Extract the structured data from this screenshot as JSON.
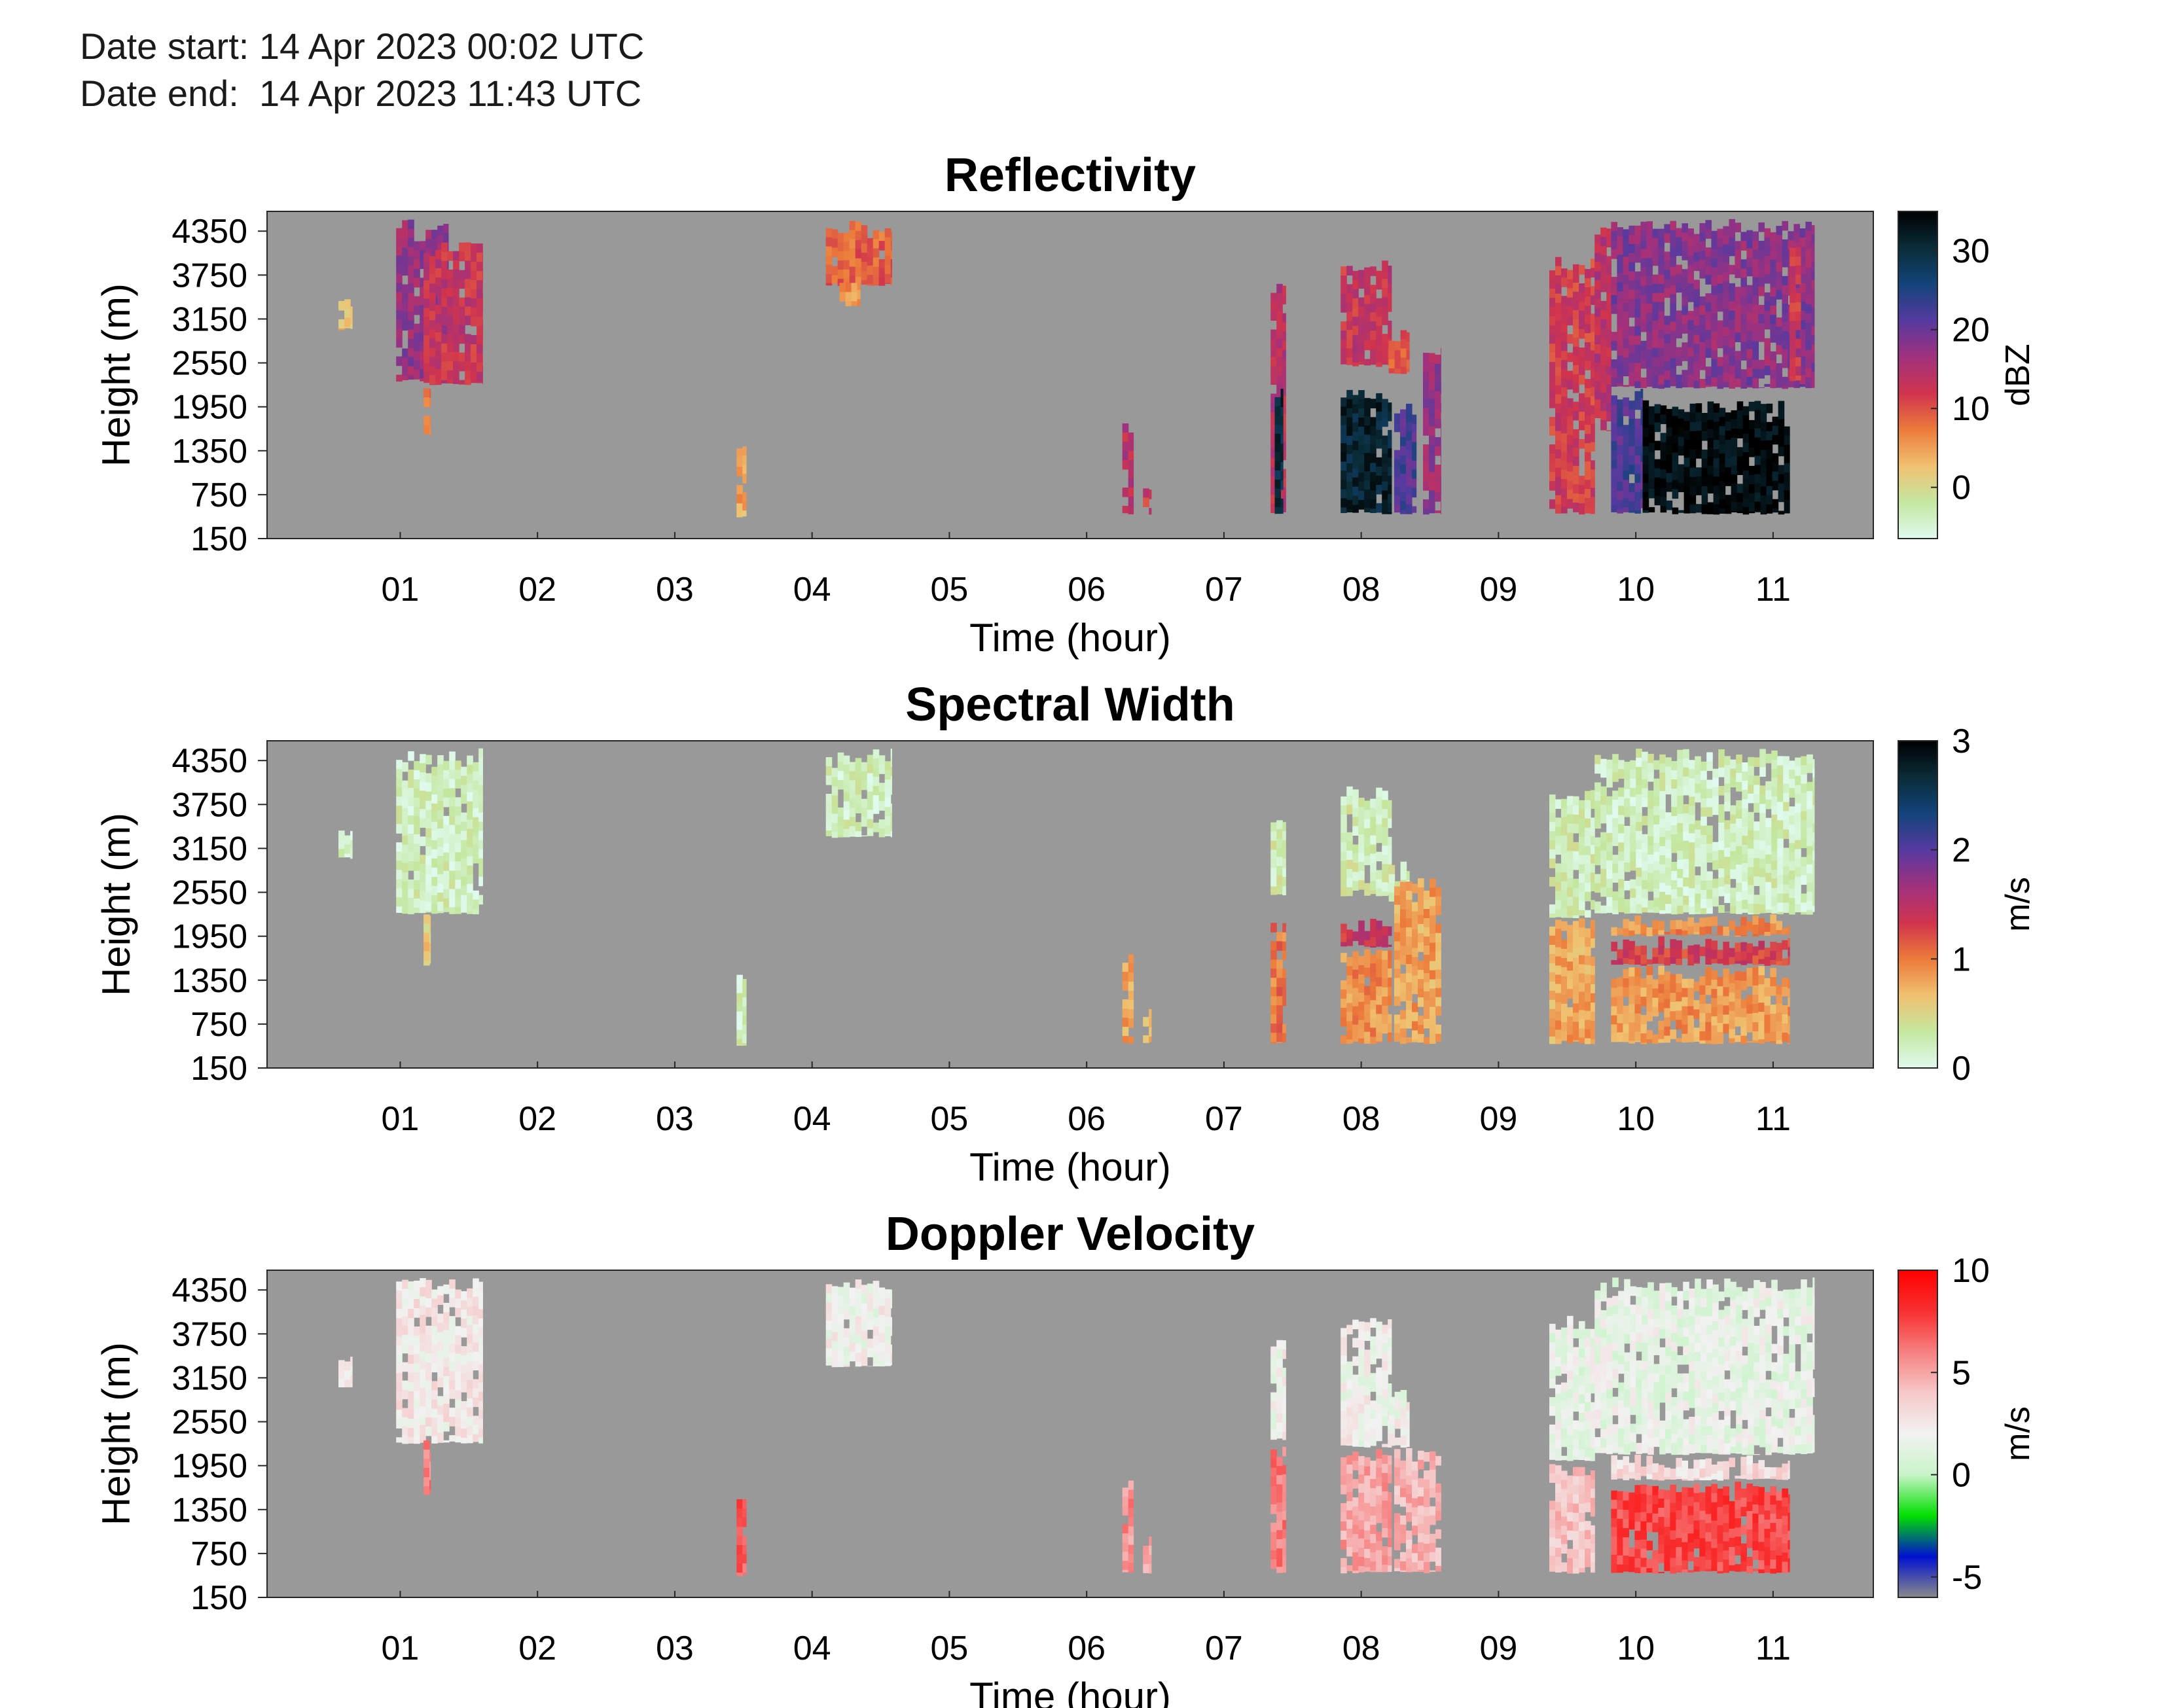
{
  "header": {
    "date_start": "Date start: 14 Apr 2023 00:02 UTC",
    "date_end": "Date end:  14 Apr 2023 11:43 UTC"
  },
  "chart_data": [
    {
      "type": "heatmap",
      "title": "Reflectivity",
      "xlabel": "Time (hour)",
      "ylabel": "Height (m)",
      "xlim": [
        0.03,
        11.73
      ],
      "ylim": [
        150,
        4620
      ],
      "xticks": [
        "01",
        "02",
        "03",
        "04",
        "05",
        "06",
        "07",
        "08",
        "09",
        "10",
        "11"
      ],
      "yticks": [
        "4350",
        "3750",
        "3150",
        "2550",
        "1950",
        "1350",
        "750",
        "150"
      ],
      "background_color": "#999999",
      "colorbar": {
        "label": "dBZ",
        "min": -6.5,
        "max": 35,
        "ticks": [
          "30",
          "20",
          "10",
          "0"
        ],
        "colors": [
          "#dffbee",
          "#c4e7a0",
          "#f0c170",
          "#ec7a3a",
          "#d0344e",
          "#a0317e",
          "#553aa0",
          "#13447a",
          "#0a2c38",
          "#000000"
        ]
      },
      "regions": [
        {
          "t": [
            0.55,
            0.65
          ],
          "h": [
            3000,
            3450
          ],
          "v": 3
        },
        {
          "t": [
            0.97,
            1.35
          ],
          "h": [
            2300,
            4520
          ],
          "v": 17
        },
        {
          "t": [
            1.17,
            1.6
          ],
          "h": [
            2250,
            4200
          ],
          "v": 13
        },
        {
          "t": [
            1.17,
            1.22
          ],
          "h": [
            1550,
            2300
          ],
          "v": 8
        },
        {
          "t": [
            3.45,
            3.52
          ],
          "h": [
            430,
            1550
          ],
          "v": 4
        },
        {
          "t": [
            4.1,
            4.58
          ],
          "h": [
            3600,
            4520
          ],
          "v": 9
        },
        {
          "t": [
            4.2,
            4.35
          ],
          "h": [
            3300,
            3700
          ],
          "v": 6
        },
        {
          "t": [
            6.26,
            6.34
          ],
          "h": [
            480,
            1750
          ],
          "v": 14
        },
        {
          "t": [
            6.41,
            6.47
          ],
          "h": [
            480,
            1000
          ],
          "v": 12
        },
        {
          "t": [
            7.34,
            7.45
          ],
          "h": [
            480,
            3700
          ],
          "v": 14
        },
        {
          "t": [
            7.37,
            7.43
          ],
          "h": [
            480,
            2200
          ],
          "v": 30
        },
        {
          "t": [
            7.85,
            8.22
          ],
          "h": [
            2500,
            4000
          ],
          "v": 13
        },
        {
          "t": [
            7.85,
            8.22
          ],
          "h": [
            480,
            2200
          ],
          "v": 31
        },
        {
          "t": [
            8.2,
            8.35
          ],
          "h": [
            2400,
            3000
          ],
          "v": 9
        },
        {
          "t": [
            8.24,
            8.4
          ],
          "h": [
            480,
            2000
          ],
          "v": 22
        },
        {
          "t": [
            8.45,
            8.58
          ],
          "h": [
            480,
            2800
          ],
          "v": 17
        },
        {
          "t": [
            9.37,
            9.7
          ],
          "h": [
            480,
            4000
          ],
          "v": 12
        },
        {
          "t": [
            9.7,
            9.82
          ],
          "h": [
            1600,
            4400
          ],
          "v": 14
        },
        {
          "t": [
            9.82,
            11.3
          ],
          "h": [
            2200,
            4520
          ],
          "v": 18
        },
        {
          "t": [
            9.82,
            10.05
          ],
          "h": [
            480,
            2200
          ],
          "v": 22
        },
        {
          "t": [
            10.05,
            11.12
          ],
          "h": [
            480,
            2050
          ],
          "v": 34
        },
        {
          "t": [
            11.12,
            11.2
          ],
          "h": [
            2300,
            4200
          ],
          "v": 12
        }
      ]
    },
    {
      "type": "heatmap",
      "title": "Spectral Width",
      "xlabel": "Time (hour)",
      "ylabel": "Height (m)",
      "xlim": [
        0.03,
        11.73
      ],
      "ylim": [
        150,
        4620
      ],
      "xticks": [
        "01",
        "02",
        "03",
        "04",
        "05",
        "06",
        "07",
        "08",
        "09",
        "10",
        "11"
      ],
      "yticks": [
        "4350",
        "3750",
        "3150",
        "2550",
        "1950",
        "1350",
        "750",
        "150"
      ],
      "background_color": "#999999",
      "colorbar": {
        "label": "m/s",
        "min": 0,
        "max": 3,
        "ticks": [
          "3",
          "2",
          "1",
          "0"
        ],
        "colors": [
          "#dffbee",
          "#c4e7a0",
          "#f0c170",
          "#ec7a3a",
          "#d0344e",
          "#a0317e",
          "#553aa0",
          "#13447a",
          "#0a2c38",
          "#000000"
        ]
      },
      "regions": [
        {
          "t": [
            0.55,
            0.65
          ],
          "h": [
            3000,
            3450
          ],
          "v": 0.15
        },
        {
          "t": [
            0.97,
            1.6
          ],
          "h": [
            2250,
            4520
          ],
          "v": 0.2
        },
        {
          "t": [
            1.17,
            1.22
          ],
          "h": [
            1550,
            2300
          ],
          "v": 0.6
        },
        {
          "t": [
            3.45,
            3.52
          ],
          "h": [
            430,
            1550
          ],
          "v": 0.2
        },
        {
          "t": [
            4.1,
            4.58
          ],
          "h": [
            3300,
            4520
          ],
          "v": 0.2
        },
        {
          "t": [
            6.26,
            6.34
          ],
          "h": [
            480,
            1750
          ],
          "v": 0.8
        },
        {
          "t": [
            6.41,
            6.47
          ],
          "h": [
            480,
            1000
          ],
          "v": 0.7
        },
        {
          "t": [
            7.34,
            7.45
          ],
          "h": [
            2500,
            3700
          ],
          "v": 0.25
        },
        {
          "t": [
            7.34,
            7.45
          ],
          "h": [
            480,
            2200
          ],
          "v": 1.0
        },
        {
          "t": [
            7.85,
            8.22
          ],
          "h": [
            2500,
            4000
          ],
          "v": 0.25
        },
        {
          "t": [
            7.85,
            8.22
          ],
          "h": [
            1800,
            2200
          ],
          "v": 1.4
        },
        {
          "t": [
            7.85,
            8.22
          ],
          "h": [
            480,
            1800
          ],
          "v": 0.9
        },
        {
          "t": [
            8.2,
            8.35
          ],
          "h": [
            2400,
            3000
          ],
          "v": 0.3
        },
        {
          "t": [
            8.24,
            8.58
          ],
          "h": [
            480,
            2800
          ],
          "v": 0.8
        },
        {
          "t": [
            9.37,
            9.7
          ],
          "h": [
            2200,
            4000
          ],
          "v": 0.25
        },
        {
          "t": [
            9.37,
            9.7
          ],
          "h": [
            480,
            2200
          ],
          "v": 0.8
        },
        {
          "t": [
            9.7,
            11.3
          ],
          "h": [
            2250,
            4520
          ],
          "v": 0.2
        },
        {
          "t": [
            9.82,
            11.12
          ],
          "h": [
            1950,
            2250
          ],
          "v": 0.9
        },
        {
          "t": [
            9.82,
            11.12
          ],
          "h": [
            1550,
            1950
          ],
          "v": 1.3
        },
        {
          "t": [
            9.82,
            11.12
          ],
          "h": [
            480,
            1550
          ],
          "v": 0.85
        }
      ]
    },
    {
      "type": "heatmap",
      "title": "Doppler Velocity",
      "xlabel": "Time (hour)",
      "ylabel": "Height (m)",
      "xlim": [
        0.03,
        11.73
      ],
      "ylim": [
        150,
        4620
      ],
      "xticks": [
        "01",
        "02",
        "03",
        "04",
        "05",
        "06",
        "07",
        "08",
        "09",
        "10",
        "11"
      ],
      "yticks": [
        "4350",
        "3750",
        "3150",
        "2550",
        "1950",
        "1350",
        "750",
        "150"
      ],
      "background_color": "#999999",
      "colorbar": {
        "label": "m/s",
        "min": -6,
        "max": 10,
        "ticks": [
          "10",
          "5",
          "0",
          "-5"
        ],
        "colors": [
          "#8a8a8a",
          "#0010d0",
          "#00e000",
          "#c8f4c8",
          "#f2f2f2",
          "#f6c8c8",
          "#f68080",
          "#f83030",
          "#ff0000"
        ]
      },
      "regions": [
        {
          "t": [
            0.55,
            0.65
          ],
          "h": [
            3000,
            3450
          ],
          "v": 2.5
        },
        {
          "t": [
            0.97,
            1.6
          ],
          "h": [
            2250,
            4520
          ],
          "v": 2.5
        },
        {
          "t": [
            1.17,
            1.22
          ],
          "h": [
            1550,
            2300
          ],
          "v": 6
        },
        {
          "t": [
            3.45,
            3.52
          ],
          "h": [
            430,
            1550
          ],
          "v": 7
        },
        {
          "t": [
            4.1,
            4.58
          ],
          "h": [
            3300,
            4520
          ],
          "v": 2
        },
        {
          "t": [
            6.26,
            6.34
          ],
          "h": [
            480,
            1750
          ],
          "v": 5.5
        },
        {
          "t": [
            6.41,
            6.47
          ],
          "h": [
            480,
            1000
          ],
          "v": 5
        },
        {
          "t": [
            7.34,
            7.45
          ],
          "h": [
            2300,
            3700
          ],
          "v": 2
        },
        {
          "t": [
            7.34,
            7.45
          ],
          "h": [
            480,
            2300
          ],
          "v": 6
        },
        {
          "t": [
            7.85,
            8.22
          ],
          "h": [
            2200,
            4000
          ],
          "v": 2
        },
        {
          "t": [
            7.85,
            8.22
          ],
          "h": [
            480,
            2200
          ],
          "v": 5
        },
        {
          "t": [
            8.2,
            8.35
          ],
          "h": [
            2200,
            3000
          ],
          "v": 2
        },
        {
          "t": [
            8.24,
            8.58
          ],
          "h": [
            480,
            2200
          ],
          "v": 4.5
        },
        {
          "t": [
            9.37,
            9.7
          ],
          "h": [
            2000,
            4000
          ],
          "v": 1.5
        },
        {
          "t": [
            9.37,
            9.7
          ],
          "h": [
            480,
            2000
          ],
          "v": 4
        },
        {
          "t": [
            9.7,
            11.3
          ],
          "h": [
            2100,
            4520
          ],
          "v": 1.5
        },
        {
          "t": [
            9.82,
            11.12
          ],
          "h": [
            1750,
            2100
          ],
          "v": 3
        },
        {
          "t": [
            9.82,
            11.12
          ],
          "h": [
            480,
            1750
          ],
          "v": 7.5
        }
      ]
    }
  ]
}
